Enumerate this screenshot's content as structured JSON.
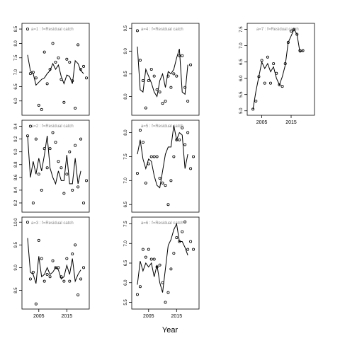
{
  "chart_data": {
    "type": "line",
    "xlabel": "Year",
    "panels": [
      {
        "id": "a1",
        "label": "a=1  :  f=Residual catch",
        "yticks": [
          6.0,
          6.5,
          7.0,
          7.5,
          8.0,
          8.5
        ],
        "ylim": [
          5.6,
          8.6
        ],
        "xlim": [
          2000,
          2022
        ],
        "show_xticks": false,
        "xticks": [],
        "line": [
          [
            2001,
            7.6
          ],
          [
            2002,
            7.05
          ],
          [
            2003,
            6.95
          ],
          [
            2004,
            6.55
          ],
          [
            2005,
            6.65
          ],
          [
            2006,
            6.75
          ],
          [
            2007,
            6.8
          ],
          [
            2008,
            6.95
          ],
          [
            2009,
            7.05
          ],
          [
            2010,
            7.3
          ],
          [
            2011,
            7.1
          ],
          [
            2012,
            7.25
          ],
          [
            2013,
            6.85
          ],
          [
            2014,
            6.6
          ],
          [
            2015,
            6.9
          ],
          [
            2016,
            6.85
          ],
          [
            2017,
            6.6
          ],
          [
            2018,
            7.4
          ],
          [
            2019,
            7.3
          ],
          [
            2020,
            7.05
          ],
          [
            2021,
            6.95
          ]
        ],
        "points": [
          [
            2001,
            8.5
          ],
          [
            2002,
            6.95
          ],
          [
            2003,
            7.0
          ],
          [
            2004,
            6.8
          ],
          [
            2005,
            5.85
          ],
          [
            2006,
            5.7
          ],
          [
            2007,
            7.7
          ],
          [
            2008,
            6.6
          ],
          [
            2009,
            7.1
          ],
          [
            2010,
            8.0
          ],
          [
            2011,
            7.35
          ],
          [
            2012,
            7.5
          ],
          [
            2013,
            6.75
          ],
          [
            2014,
            5.95
          ],
          [
            2015,
            7.45
          ],
          [
            2016,
            7.35
          ],
          [
            2017,
            6.7
          ],
          [
            2018,
            5.75
          ],
          [
            2019,
            7.95
          ],
          [
            2020,
            7.1
          ],
          [
            2021,
            7.2
          ],
          [
            2022,
            6.8
          ]
        ]
      },
      {
        "id": "a2",
        "label": "a=2  :  f=Residual catch",
        "yticks": [
          8.2,
          8.4,
          8.6,
          8.8,
          9.0,
          9.2,
          9.4
        ],
        "ylim": [
          8.1,
          9.45
        ],
        "xlim": [
          2000,
          2022
        ],
        "show_xticks": false,
        "xticks": [],
        "line": [
          [
            2001,
            9.25
          ],
          [
            2002,
            8.6
          ],
          [
            2003,
            8.85
          ],
          [
            2004,
            8.65
          ],
          [
            2005,
            8.9
          ],
          [
            2006,
            8.7
          ],
          [
            2007,
            8.95
          ],
          [
            2008,
            9.25
          ],
          [
            2009,
            8.75
          ],
          [
            2010,
            8.6
          ],
          [
            2011,
            8.5
          ],
          [
            2012,
            8.7
          ],
          [
            2013,
            8.55
          ],
          [
            2014,
            8.55
          ],
          [
            2015,
            8.95
          ],
          [
            2016,
            8.5
          ],
          [
            2017,
            8.5
          ],
          [
            2018,
            8.9
          ],
          [
            2019,
            8.5
          ],
          [
            2020,
            8.7
          ]
        ],
        "points": [
          [
            2001,
            9.25
          ],
          [
            2002,
            9.4
          ],
          [
            2003,
            8.2
          ],
          [
            2004,
            9.2
          ],
          [
            2005,
            8.65
          ],
          [
            2006,
            8.4
          ],
          [
            2007,
            9.05
          ],
          [
            2008,
            8.75
          ],
          [
            2009,
            9.05
          ],
          [
            2010,
            9.3
          ],
          [
            2011,
            9.15
          ],
          [
            2012,
            8.85
          ],
          [
            2013,
            8.75
          ],
          [
            2014,
            8.35
          ],
          [
            2015,
            8.65
          ],
          [
            2016,
            9.0
          ],
          [
            2017,
            8.4
          ],
          [
            2018,
            9.1
          ],
          [
            2019,
            8.45
          ],
          [
            2020,
            9.2
          ],
          [
            2021,
            8.2
          ],
          [
            2022,
            8.55
          ]
        ]
      },
      {
        "id": "a3",
        "label": "a=3  :  f=Residual catch",
        "yticks": [
          8.5,
          9.0,
          9.5,
          10.0
        ],
        "ylim": [
          8.15,
          10.05
        ],
        "xlim": [
          2000,
          2022
        ],
        "show_xticks": true,
        "xticks": [
          2005,
          2015
        ],
        "line": [
          [
            2001,
            9.65
          ],
          [
            2002,
            8.9
          ],
          [
            2003,
            8.85
          ],
          [
            2004,
            8.65
          ],
          [
            2005,
            9.25
          ],
          [
            2006,
            8.8
          ],
          [
            2007,
            8.85
          ],
          [
            2008,
            9.0
          ],
          [
            2009,
            8.85
          ],
          [
            2010,
            8.9
          ],
          [
            2011,
            9.0
          ],
          [
            2012,
            8.95
          ],
          [
            2013,
            8.75
          ],
          [
            2014,
            8.8
          ],
          [
            2015,
            9.05
          ],
          [
            2016,
            8.85
          ],
          [
            2017,
            9.2
          ],
          [
            2018,
            8.7
          ],
          [
            2019,
            8.85
          ],
          [
            2020,
            8.95
          ]
        ],
        "points": [
          [
            2001,
            10.0
          ],
          [
            2002,
            8.75
          ],
          [
            2003,
            8.9
          ],
          [
            2004,
            8.2
          ],
          [
            2005,
            9.6
          ],
          [
            2006,
            9.2
          ],
          [
            2007,
            8.7
          ],
          [
            2008,
            8.85
          ],
          [
            2009,
            8.8
          ],
          [
            2010,
            9.15
          ],
          [
            2011,
            9.0
          ],
          [
            2012,
            9.0
          ],
          [
            2013,
            8.8
          ],
          [
            2014,
            8.7
          ],
          [
            2015,
            9.2
          ],
          [
            2016,
            8.7
          ],
          [
            2017,
            9.3
          ],
          [
            2018,
            9.5
          ],
          [
            2019,
            8.4
          ],
          [
            2020,
            8.75
          ],
          [
            2021,
            9.0
          ]
        ]
      },
      {
        "id": "a4",
        "label": "a=4  :  f=Residual catch",
        "yticks": [
          8.0,
          8.5,
          9.0,
          9.5
        ],
        "ylim": [
          7.65,
          9.55
        ],
        "xlim": [
          2000,
          2022
        ],
        "show_xticks": false,
        "xticks": [],
        "line": [
          [
            2001,
            9.1
          ],
          [
            2002,
            8.15
          ],
          [
            2003,
            8.1
          ],
          [
            2004,
            8.6
          ],
          [
            2005,
            8.45
          ],
          [
            2006,
            8.3
          ],
          [
            2007,
            8.1
          ],
          [
            2008,
            8.0
          ],
          [
            2009,
            8.35
          ],
          [
            2010,
            8.5
          ],
          [
            2011,
            8.2
          ],
          [
            2012,
            8.55
          ],
          [
            2013,
            8.5
          ],
          [
            2014,
            8.6
          ],
          [
            2015,
            8.85
          ],
          [
            2016,
            9.05
          ],
          [
            2017,
            8.1
          ],
          [
            2018,
            8.05
          ],
          [
            2019,
            8.7
          ]
        ],
        "points": [
          [
            2001,
            9.45
          ],
          [
            2002,
            8.8
          ],
          [
            2003,
            8.35
          ],
          [
            2004,
            7.75
          ],
          [
            2005,
            8.35
          ],
          [
            2006,
            8.6
          ],
          [
            2007,
            8.45
          ],
          [
            2008,
            8.15
          ],
          [
            2009,
            8.1
          ],
          [
            2010,
            7.85
          ],
          [
            2011,
            7.9
          ],
          [
            2012,
            8.45
          ],
          [
            2013,
            8.2
          ],
          [
            2014,
            8.5
          ],
          [
            2015,
            8.45
          ],
          [
            2016,
            8.9
          ],
          [
            2017,
            8.9
          ],
          [
            2018,
            8.2
          ],
          [
            2019,
            7.9
          ],
          [
            2020,
            8.7
          ]
        ]
      },
      {
        "id": "a5",
        "label": "a=5  :  f=Residual catch",
        "yticks": [
          6.5,
          7.0,
          7.5,
          8.0
        ],
        "ylim": [
          6.4,
          8.2
        ],
        "xlim": [
          2000,
          2022
        ],
        "show_xticks": false,
        "xticks": [],
        "line": [
          [
            2001,
            7.55
          ],
          [
            2002,
            7.85
          ],
          [
            2003,
            7.45
          ],
          [
            2004,
            7.25
          ],
          [
            2005,
            7.45
          ],
          [
            2006,
            7.4
          ],
          [
            2007,
            7.1
          ],
          [
            2008,
            6.9
          ],
          [
            2009,
            6.85
          ],
          [
            2010,
            7.2
          ],
          [
            2011,
            7.55
          ],
          [
            2012,
            7.7
          ],
          [
            2013,
            7.7
          ],
          [
            2014,
            8.15
          ],
          [
            2015,
            7.85
          ],
          [
            2016,
            8.0
          ],
          [
            2017,
            7.95
          ],
          [
            2018,
            7.25
          ],
          [
            2019,
            7.55
          ]
        ],
        "points": [
          [
            2001,
            7.15
          ],
          [
            2002,
            8.05
          ],
          [
            2003,
            7.8
          ],
          [
            2004,
            6.95
          ],
          [
            2005,
            7.35
          ],
          [
            2006,
            7.5
          ],
          [
            2007,
            7.5
          ],
          [
            2008,
            7.5
          ],
          [
            2009,
            7.05
          ],
          [
            2010,
            6.95
          ],
          [
            2011,
            6.9
          ],
          [
            2012,
            6.5
          ],
          [
            2013,
            7.0
          ],
          [
            2014,
            7.5
          ],
          [
            2015,
            7.85
          ],
          [
            2016,
            7.85
          ],
          [
            2017,
            8.1
          ],
          [
            2018,
            7.75
          ],
          [
            2019,
            8.0
          ],
          [
            2020,
            7.25
          ],
          [
            2021,
            7.5
          ]
        ]
      },
      {
        "id": "a6",
        "label": "a=6  :  f=Residual catch",
        "yticks": [
          5.5,
          6.0,
          6.5,
          7.0,
          7.5
        ],
        "ylim": [
          5.4,
          7.6
        ],
        "xlim": [
          2000,
          2022
        ],
        "show_xticks": true,
        "xticks": [
          2005,
          2015
        ],
        "line": [
          [
            2001,
            5.95
          ],
          [
            2002,
            6.55
          ],
          [
            2003,
            6.3
          ],
          [
            2004,
            6.5
          ],
          [
            2005,
            6.4
          ],
          [
            2006,
            6.5
          ],
          [
            2007,
            6.15
          ],
          [
            2008,
            6.45
          ],
          [
            2009,
            6.0
          ],
          [
            2010,
            5.75
          ],
          [
            2011,
            6.35
          ],
          [
            2012,
            6.95
          ],
          [
            2013,
            7.1
          ],
          [
            2014,
            7.35
          ],
          [
            2015,
            7.5
          ],
          [
            2016,
            7.05
          ],
          [
            2017,
            7.05
          ],
          [
            2018,
            6.9
          ],
          [
            2019,
            6.7
          ]
        ],
        "points": [
          [
            2001,
            5.7
          ],
          [
            2002,
            5.9
          ],
          [
            2003,
            6.85
          ],
          [
            2004,
            6.65
          ],
          [
            2005,
            6.85
          ],
          [
            2006,
            6.6
          ],
          [
            2007,
            6.6
          ],
          [
            2008,
            6.4
          ],
          [
            2009,
            6.45
          ],
          [
            2010,
            6.0
          ],
          [
            2011,
            5.5
          ],
          [
            2012,
            5.75
          ],
          [
            2013,
            6.35
          ],
          [
            2014,
            6.75
          ],
          [
            2015,
            7.15
          ],
          [
            2016,
            7.05
          ],
          [
            2017,
            7.3
          ],
          [
            2018,
            7.55
          ],
          [
            2019,
            6.85
          ],
          [
            2020,
            7.05
          ],
          [
            2021,
            6.85
          ]
        ]
      },
      {
        "id": "a7",
        "label": "a=7  :  f=Residual catch",
        "yticks": [
          5.0,
          5.5,
          6.0,
          6.5,
          7.0,
          7.5
        ],
        "ylim": [
          4.95,
          7.6
        ],
        "xlim": [
          2001,
          2022
        ],
        "show_xticks": true,
        "xticks": [
          2005,
          2015
        ],
        "line": [
          [
            2002,
            5.05
          ],
          [
            2003,
            5.6
          ],
          [
            2004,
            6.05
          ],
          [
            2005,
            6.5
          ],
          [
            2006,
            6.3
          ],
          [
            2007,
            6.45
          ],
          [
            2008,
            6.2
          ],
          [
            2009,
            6.35
          ],
          [
            2010,
            6.0
          ],
          [
            2011,
            5.8
          ],
          [
            2012,
            6.05
          ],
          [
            2013,
            6.4
          ],
          [
            2014,
            7.1
          ],
          [
            2015,
            7.3
          ],
          [
            2016,
            7.5
          ],
          [
            2017,
            7.35
          ],
          [
            2018,
            6.8
          ],
          [
            2019,
            6.85
          ]
        ],
        "points": [
          [
            2002,
            5.05
          ],
          [
            2003,
            5.3
          ],
          [
            2004,
            6.05
          ],
          [
            2005,
            6.55
          ],
          [
            2006,
            5.85
          ],
          [
            2007,
            6.65
          ],
          [
            2008,
            5.85
          ],
          [
            2009,
            6.45
          ],
          [
            2010,
            6.15
          ],
          [
            2011,
            5.8
          ],
          [
            2012,
            5.75
          ],
          [
            2013,
            6.45
          ],
          [
            2014,
            7.1
          ],
          [
            2015,
            7.45
          ],
          [
            2016,
            7.5
          ],
          [
            2017,
            7.35
          ],
          [
            2018,
            6.85
          ],
          [
            2019,
            6.85
          ]
        ]
      }
    ]
  }
}
